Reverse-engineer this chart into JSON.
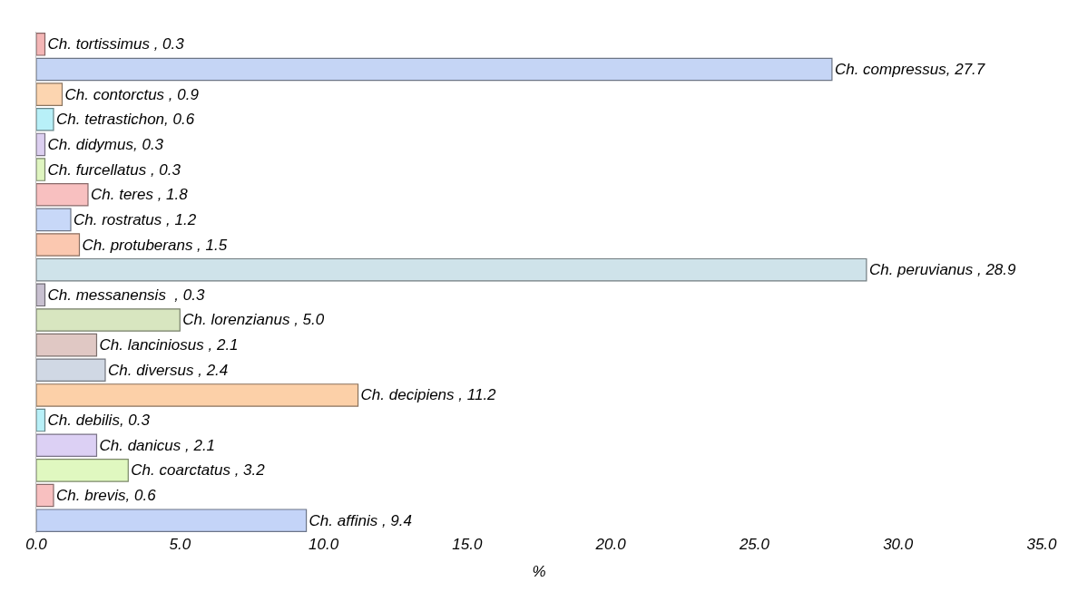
{
  "chart_data": {
    "type": "bar",
    "orientation": "horizontal",
    "xlabel": "%",
    "tick_labels": "x",
    "categories": [
      null,
      null,
      null,
      null,
      null,
      null,
      null,
      null,
      null,
      null,
      null,
      null,
      null,
      null,
      null,
      null,
      null,
      null,
      null,
      null
    ],
    "values": [
      0.3,
      27.7,
      0.9,
      0.6,
      0.3,
      0.3,
      1.8,
      1.2,
      1.5,
      28.9,
      0.3,
      5.0,
      2.1,
      2.4,
      11.2,
      0.3,
      2.1,
      3.2,
      0.6,
      9.4
    ],
    "value_labels": [
      "Ch. tortissimus , 0.3",
      "Ch. compressus, 27.7",
      "Ch. contorctus , 0.9",
      "Ch. tetrastichon, 0.6",
      "Ch. didymus, 0.3",
      "Ch. furcellatus , 0.3",
      "Ch. teres , 1.8",
      "Ch. rostratus , 1.2",
      "Ch. protuberans , 1.5",
      "Ch. peruvianus , 28.9",
      "Ch. messanensis  , 0.3",
      "Ch. lorenzianus , 5.0",
      "Ch. lanciniosus , 2.1",
      "Ch. diversus , 2.4",
      "Ch. decipiens , 11.2",
      "Ch. debilis, 0.3",
      "Ch. danicus , 2.1",
      "Ch. coarctatus , 3.2",
      "Ch. brevis, 0.6",
      "Ch. affinis , 9.4"
    ],
    "colors": [
      "#f4b6b6",
      "#c5d5f5",
      "#fcd5b0",
      "#b8f0f8",
      "#dccff0",
      "#dff5c0",
      "#f8c0c0",
      "#c8d8f8",
      "#fbc8b0",
      "#cfe3ea",
      "#c8c0d0",
      "#d8e6c0",
      "#e0c8c4",
      "#d0d8e4",
      "#fcd0a8",
      "#b8f0f8",
      "#dcd0f4",
      "#e0f8c0",
      "#f8c0c0",
      "#c4d4f8"
    ],
    "xlim": [
      0,
      35
    ],
    "xticks": [
      {
        "value": 0,
        "label": "0.0"
      },
      {
        "value": 5,
        "label": "5.0"
      },
      {
        "value": 10,
        "label": "10.0"
      },
      {
        "value": 15,
        "label": "15.0"
      },
      {
        "value": 20,
        "label": "20.0"
      },
      {
        "value": 25,
        "label": "25.0"
      },
      {
        "value": 30,
        "label": "30.0"
      },
      {
        "value": 35,
        "label": "35.0"
      }
    ]
  }
}
